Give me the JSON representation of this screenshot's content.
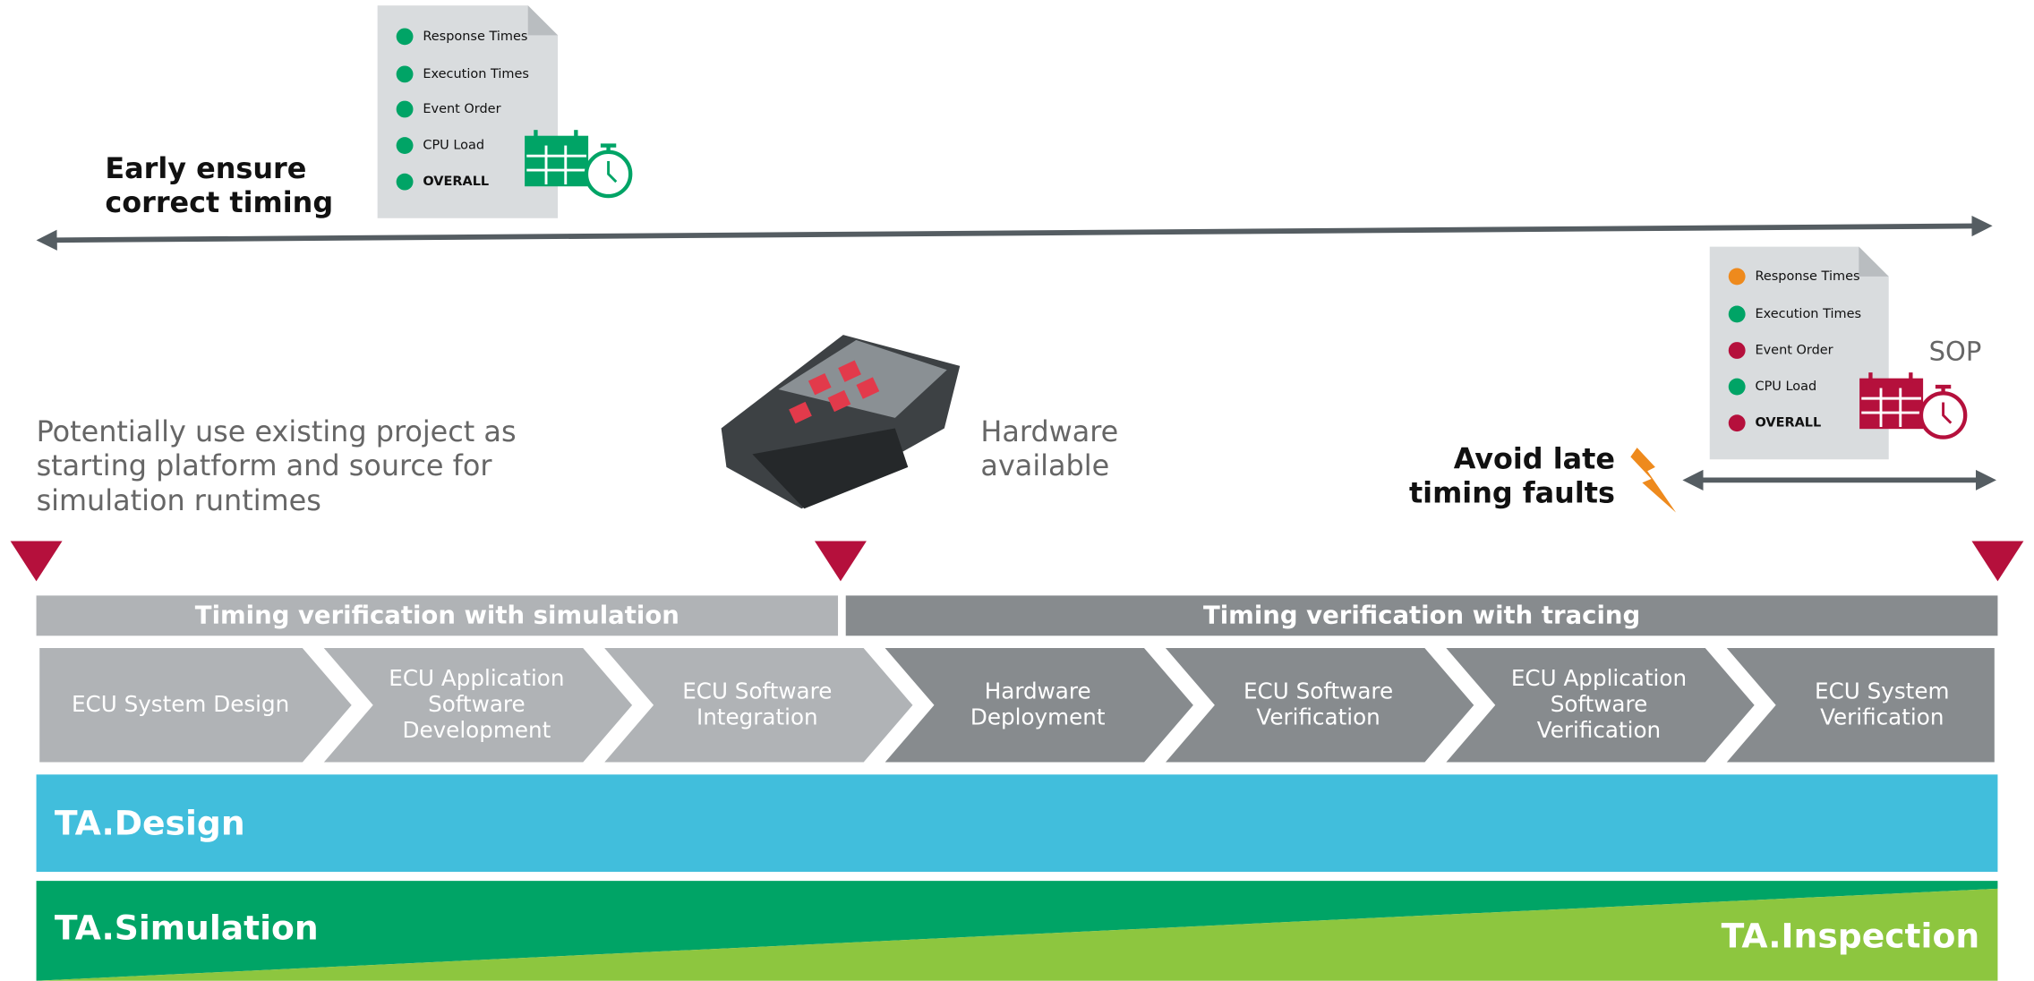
{
  "early_report": {
    "items": [
      {
        "label": "Response Times",
        "color": "#00a466"
      },
      {
        "label": "Execution Times",
        "color": "#00a466"
      },
      {
        "label": "Event Order",
        "color": "#00a466"
      },
      {
        "label": "CPU Load",
        "color": "#00a466"
      },
      {
        "label": "OVERALL",
        "color": "#00a466"
      }
    ]
  },
  "early_note": {
    "lines": [
      "Early ensure",
      "correct timing"
    ]
  },
  "sop_report": {
    "items": [
      {
        "label": "Response Times",
        "color": "#ee8a1d"
      },
      {
        "label": "Execution Times",
        "color": "#00a466"
      },
      {
        "label": "Event Order",
        "color": "#b5103c"
      },
      {
        "label": "CPU Load",
        "color": "#00a466"
      },
      {
        "label": "OVERALL",
        "color": "#b5103c"
      }
    ]
  },
  "sop_label": "SOP",
  "late_note": {
    "lines": [
      "Avoid late",
      "timing faults"
    ]
  },
  "reuse_note": {
    "lines": [
      "Potentially use existing project as",
      "starting platform and source for",
      "simulation runtimes"
    ]
  },
  "hardware_note": {
    "lines": [
      "Hardware",
      "available"
    ]
  },
  "phases": [
    "Timing verification with simulation",
    "Timing verification with tracing"
  ],
  "steps": [
    {
      "lines": [
        "ECU System Design"
      ]
    },
    {
      "lines": [
        "ECU Application",
        "Software",
        "Development"
      ]
    },
    {
      "lines": [
        "ECU Software",
        "Integration"
      ]
    },
    {
      "lines": [
        "Hardware",
        "Deployment"
      ]
    },
    {
      "lines": [
        "ECU Software",
        "Verification"
      ]
    },
    {
      "lines": [
        "ECU Application",
        "Software",
        "Verification"
      ]
    },
    {
      "lines": [
        "ECU System",
        "Verification"
      ]
    }
  ],
  "tools": {
    "design": "TA.Design",
    "simulation": "TA.Simulation",
    "inspection": "TA.Inspection"
  }
}
